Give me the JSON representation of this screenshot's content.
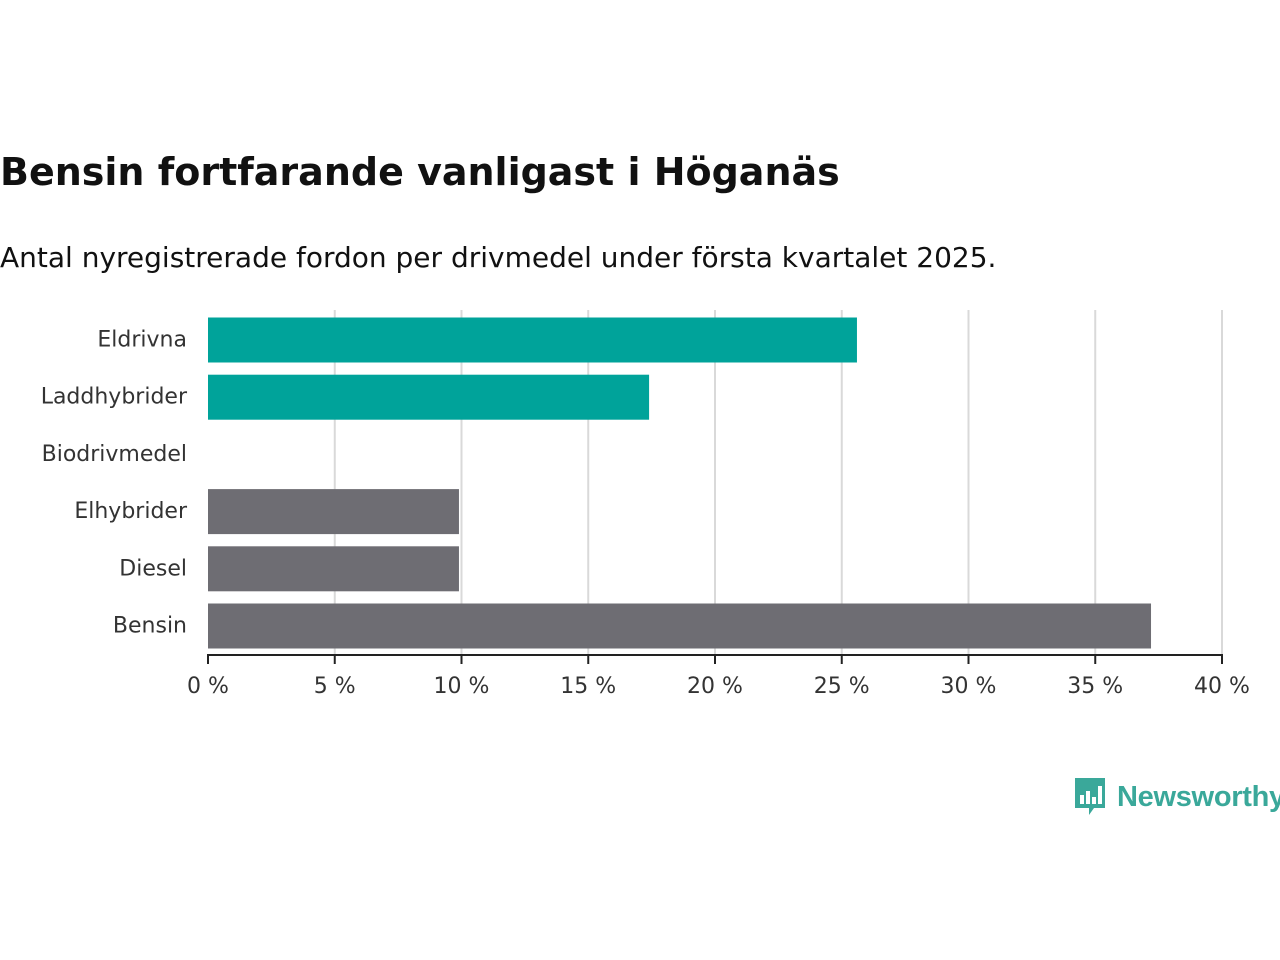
{
  "title": "Bensin fortfarande vanligast i Höganäs",
  "subtitle": "Antal nyregistrerade fordon per drivmedel under första kvartalet 2025.",
  "brand": {
    "name": "Newsworthy",
    "icon": "newsworthy-logo-icon",
    "color": "#3aa89a"
  },
  "colors": {
    "highlight": "#00a39a",
    "default": "#6e6d73",
    "grid": "#d9d9d9",
    "axis": "#222222"
  },
  "chart_data": {
    "type": "bar",
    "orientation": "horizontal",
    "categories": [
      "Eldrivna",
      "Laddhybrider",
      "Biodrivmedel",
      "Elhybrider",
      "Diesel",
      "Bensin"
    ],
    "values": [
      25.6,
      17.4,
      0,
      9.9,
      9.9,
      37.2
    ],
    "highlighted": [
      "Eldrivna",
      "Laddhybrider"
    ],
    "xlim": [
      0,
      40
    ],
    "ticks": [
      0,
      5,
      10,
      15,
      20,
      25,
      30,
      35,
      40
    ],
    "tick_suffix": " %",
    "xlabel": "",
    "ylabel": "",
    "grid": true
  }
}
